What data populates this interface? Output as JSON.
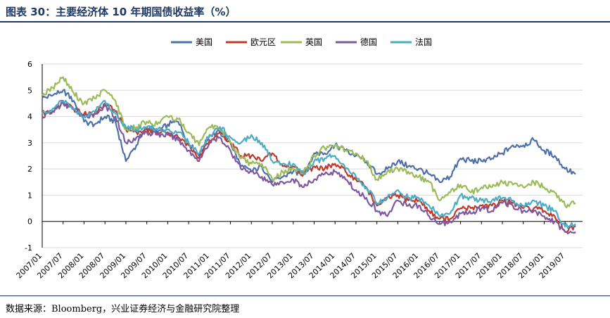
{
  "title": "图表 30：主要经济体 10 年期国债收益率（%）",
  "source": "数据来源：Bloomberg，兴业证券经济与金融研究院整理",
  "chart_data": {
    "type": "line",
    "title": "图表 30：主要经济体 10 年期国债收益率（%）",
    "xlabel": "",
    "ylabel": "",
    "ylim": [
      -1,
      6
    ],
    "yticks": [
      -1,
      0,
      1,
      2,
      3,
      4,
      5,
      6
    ],
    "xlim": [
      "2007/01",
      "2019/12"
    ],
    "x_tick_labels": [
      "2007/01",
      "2007/07",
      "2008/01",
      "2008/07",
      "2009/01",
      "2009/07",
      "2010/01",
      "2010/07",
      "2011/01",
      "2011/07",
      "2012/01",
      "2012/07",
      "2013/01",
      "2013/07",
      "2014/01",
      "2014/07",
      "2015/01",
      "2015/07",
      "2016/01",
      "2016/07",
      "2017/01",
      "2017/07",
      "2018/01",
      "2018/07",
      "2019/01",
      "2019/07"
    ],
    "grid": "horizontal",
    "legend_position": "top",
    "x": [
      "2007/01",
      "2007/04",
      "2007/07",
      "2007/10",
      "2008/01",
      "2008/04",
      "2008/07",
      "2008/10",
      "2009/01",
      "2009/04",
      "2009/07",
      "2009/10",
      "2010/01",
      "2010/04",
      "2010/07",
      "2010/10",
      "2011/01",
      "2011/04",
      "2011/07",
      "2011/10",
      "2012/01",
      "2012/04",
      "2012/07",
      "2012/10",
      "2013/01",
      "2013/04",
      "2013/07",
      "2013/10",
      "2014/01",
      "2014/04",
      "2014/07",
      "2014/10",
      "2015/01",
      "2015/04",
      "2015/07",
      "2015/10",
      "2016/01",
      "2016/04",
      "2016/07",
      "2016/10",
      "2017/01",
      "2017/04",
      "2017/07",
      "2017/10",
      "2018/01",
      "2018/04",
      "2018/07",
      "2018/10",
      "2019/01",
      "2019/04",
      "2019/07",
      "2019/10"
    ],
    "series": [
      {
        "name": "美国",
        "color": "#4f6fa8",
        "values": [
          4.7,
          4.8,
          5.0,
          4.6,
          3.8,
          3.7,
          4.0,
          3.8,
          2.3,
          2.9,
          3.6,
          3.4,
          3.7,
          3.8,
          3.0,
          2.5,
          3.3,
          3.4,
          3.0,
          2.1,
          1.9,
          2.1,
          1.5,
          1.7,
          1.9,
          1.8,
          2.6,
          2.6,
          2.9,
          2.7,
          2.5,
          2.3,
          1.8,
          2.0,
          2.3,
          2.1,
          2.0,
          1.8,
          1.5,
          1.7,
          2.4,
          2.3,
          2.3,
          2.4,
          2.6,
          2.9,
          2.9,
          3.1,
          2.7,
          2.5,
          2.0,
          1.8
        ]
      },
      {
        "name": "欧元区",
        "color": "#c0392b",
        "values": [
          4.1,
          4.2,
          4.6,
          4.3,
          4.1,
          4.1,
          4.5,
          4.2,
          3.5,
          3.4,
          3.5,
          3.4,
          3.4,
          3.2,
          2.9,
          2.4,
          3.1,
          3.4,
          3.0,
          2.5,
          2.5,
          2.3,
          2.6,
          2.1,
          2.1,
          1.8,
          2.1,
          2.0,
          2.2,
          1.9,
          1.6,
          1.3,
          0.6,
          0.9,
          1.0,
          0.8,
          0.8,
          0.4,
          0.1,
          0.1,
          0.5,
          0.5,
          0.6,
          0.6,
          0.8,
          0.7,
          0.5,
          0.5,
          0.4,
          0.2,
          -0.4,
          -0.2
        ]
      },
      {
        "name": "英国",
        "color": "#9bbb59",
        "values": [
          4.8,
          5.1,
          5.5,
          4.9,
          4.5,
          4.7,
          5.0,
          4.6,
          3.5,
          3.6,
          3.8,
          3.7,
          4.0,
          3.9,
          3.4,
          2.9,
          3.6,
          3.6,
          3.0,
          2.4,
          2.2,
          2.2,
          1.6,
          1.9,
          2.0,
          1.9,
          2.5,
          2.8,
          2.9,
          2.7,
          2.6,
          2.3,
          1.6,
          1.9,
          2.0,
          1.9,
          1.7,
          1.5,
          0.8,
          1.1,
          1.4,
          1.1,
          1.3,
          1.3,
          1.5,
          1.4,
          1.3,
          1.5,
          1.3,
          1.1,
          0.6,
          0.7
        ]
      },
      {
        "name": "德国",
        "color": "#7e57a0",
        "values": [
          4.0,
          4.2,
          4.5,
          4.3,
          4.0,
          4.1,
          4.4,
          4.0,
          3.0,
          3.2,
          3.4,
          3.3,
          3.3,
          3.1,
          2.7,
          2.3,
          3.0,
          3.2,
          2.7,
          2.0,
          1.9,
          1.7,
          1.4,
          1.5,
          1.6,
          1.3,
          1.6,
          1.8,
          1.9,
          1.6,
          1.2,
          0.9,
          0.4,
          0.2,
          0.8,
          0.6,
          0.6,
          0.2,
          -0.1,
          0.0,
          0.3,
          0.3,
          0.5,
          0.4,
          0.7,
          0.6,
          0.4,
          0.4,
          0.2,
          0.0,
          -0.4,
          -0.4
        ]
      },
      {
        "name": "法国",
        "color": "#4bacc6",
        "values": [
          4.1,
          4.3,
          4.6,
          4.3,
          4.0,
          4.2,
          4.6,
          4.1,
          3.6,
          3.5,
          3.6,
          3.5,
          3.5,
          3.4,
          3.0,
          2.6,
          3.3,
          3.6,
          3.2,
          3.0,
          3.3,
          3.0,
          2.3,
          2.2,
          2.2,
          1.8,
          2.3,
          2.4,
          2.5,
          2.0,
          1.7,
          1.3,
          0.7,
          0.9,
          1.2,
          0.9,
          0.9,
          0.6,
          0.2,
          0.3,
          1.0,
          0.9,
          0.8,
          0.8,
          0.9,
          0.8,
          0.6,
          0.8,
          0.6,
          0.4,
          -0.2,
          -0.1
        ]
      }
    ]
  }
}
